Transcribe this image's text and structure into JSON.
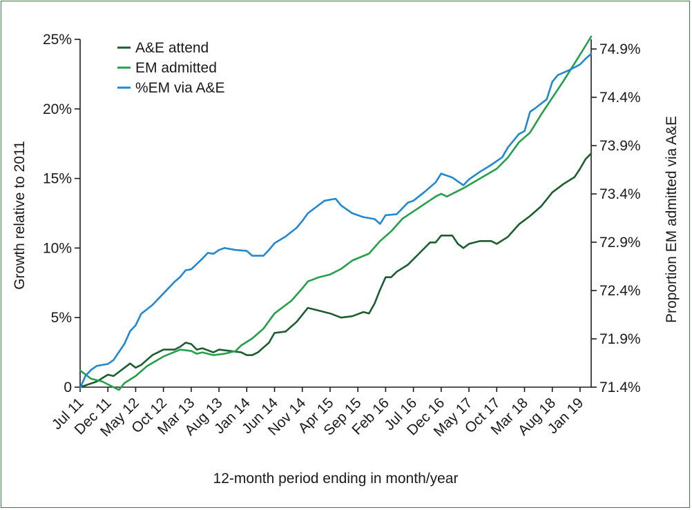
{
  "chart_data": {
    "type": "line",
    "xlabel": "12-month period ending in month/year",
    "ylabel_left": "Growth relative to 2011",
    "ylabel_right": "Proportion EM admitted via A&E",
    "x_ticks": [
      "Jul 11",
      "Dec 11",
      "May 12",
      "Oct 12",
      "Mar 13",
      "Aug 13",
      "Jan 14",
      "Jun 14",
      "Nov 14",
      "Apr 15",
      "Sep 15",
      "Feb 16",
      "Jul 16",
      "Dec 16",
      "May 17",
      "Oct 17",
      "Mar 18",
      "Aug 18",
      "Jan 19"
    ],
    "x_range": [
      "Jul 11",
      "Mar 19"
    ],
    "left_axis": {
      "ticks": [
        "0",
        "5%",
        "10%",
        "15%",
        "20%",
        "25%"
      ],
      "values": [
        0,
        5,
        10,
        15,
        20,
        25
      ],
      "ylim": [
        0,
        25
      ]
    },
    "right_axis": {
      "ticks": [
        "71.4%",
        "71.9%",
        "72.4%",
        "72.9%",
        "73.4%",
        "73.9%",
        "74.4%",
        "74.9%"
      ],
      "values": [
        71.4,
        71.9,
        72.4,
        72.9,
        73.4,
        73.9,
        74.4,
        74.9
      ],
      "ylim": [
        71.4,
        75.0
      ]
    },
    "legend_position": "top-left",
    "series": [
      {
        "name": "A&E attend",
        "axis": "left",
        "color": "#1b5e2e",
        "points": [
          [
            "Jul 11",
            0.0
          ],
          [
            "Oct 11",
            0.4
          ],
          [
            "Dec 11",
            0.9
          ],
          [
            "Jan 12",
            0.8
          ],
          [
            "Mar 12",
            1.4
          ],
          [
            "Apr 12",
            1.7
          ],
          [
            "May 12",
            1.4
          ],
          [
            "Jun 12",
            1.6
          ],
          [
            "Aug 12",
            2.3
          ],
          [
            "Oct 12",
            2.7
          ],
          [
            "Dec 12",
            2.7
          ],
          [
            "Jan 13",
            2.9
          ],
          [
            "Feb 13",
            3.2
          ],
          [
            "Mar 13",
            3.1
          ],
          [
            "Apr 13",
            2.7
          ],
          [
            "May 13",
            2.8
          ],
          [
            "Jul 13",
            2.5
          ],
          [
            "Aug 13",
            2.7
          ],
          [
            "Oct 13",
            2.6
          ],
          [
            "Dec 13",
            2.5
          ],
          [
            "Jan 14",
            2.3
          ],
          [
            "Feb 14",
            2.3
          ],
          [
            "Mar 14",
            2.5
          ],
          [
            "May 14",
            3.2
          ],
          [
            "Jun 14",
            3.9
          ],
          [
            "Aug 14",
            4.0
          ],
          [
            "Oct 14",
            4.7
          ],
          [
            "Dec 14",
            5.7
          ],
          [
            "Feb 15",
            5.5
          ],
          [
            "Apr 15",
            5.3
          ],
          [
            "Jun 15",
            5.0
          ],
          [
            "Aug 15",
            5.1
          ],
          [
            "Oct 15",
            5.4
          ],
          [
            "Nov 15",
            5.3
          ],
          [
            "Dec 15",
            6.0
          ],
          [
            "Jan 16",
            7.0
          ],
          [
            "Feb 16",
            7.9
          ],
          [
            "Mar 16",
            7.9
          ],
          [
            "Apr 16",
            8.3
          ],
          [
            "Jun 16",
            8.8
          ],
          [
            "Aug 16",
            9.6
          ],
          [
            "Oct 16",
            10.4
          ],
          [
            "Nov 16",
            10.4
          ],
          [
            "Dec 16",
            10.9
          ],
          [
            "Feb 17",
            10.9
          ],
          [
            "Mar 17",
            10.3
          ],
          [
            "Apr 17",
            10.0
          ],
          [
            "May 17",
            10.3
          ],
          [
            "Jul 17",
            10.5
          ],
          [
            "Sep 17",
            10.5
          ],
          [
            "Oct 17",
            10.3
          ],
          [
            "Dec 17",
            10.8
          ],
          [
            "Feb 18",
            11.7
          ],
          [
            "Apr 18",
            12.3
          ],
          [
            "Jun 18",
            13.0
          ],
          [
            "Aug 18",
            14.0
          ],
          [
            "Oct 18",
            14.6
          ],
          [
            "Dec 18",
            15.1
          ],
          [
            "Jan 19",
            15.7
          ],
          [
            "Feb 19",
            16.4
          ],
          [
            "Mar 19",
            16.8
          ]
        ]
      },
      {
        "name": "EM admitted",
        "axis": "left",
        "color": "#22a04a",
        "points": [
          [
            "Jul 11",
            1.2
          ],
          [
            "Sep 11",
            0.6
          ],
          [
            "Nov 11",
            0.4
          ],
          [
            "Jan 12",
            0.0
          ],
          [
            "Feb 12",
            -0.2
          ],
          [
            "Mar 12",
            0.3
          ],
          [
            "May 12",
            0.8
          ],
          [
            "Jul 12",
            1.5
          ],
          [
            "Oct 12",
            2.2
          ],
          [
            "Jan 13",
            2.7
          ],
          [
            "Mar 13",
            2.6
          ],
          [
            "Apr 13",
            2.4
          ],
          [
            "May 13",
            2.5
          ],
          [
            "Jul 13",
            2.3
          ],
          [
            "Sep 13",
            2.4
          ],
          [
            "Nov 13",
            2.6
          ],
          [
            "Dec 13",
            3.0
          ],
          [
            "Feb 14",
            3.5
          ],
          [
            "Apr 14",
            4.2
          ],
          [
            "Jun 14",
            5.3
          ],
          [
            "Sep 14",
            6.2
          ],
          [
            "Nov 14",
            7.1
          ],
          [
            "Dec 14",
            7.6
          ],
          [
            "Feb 15",
            7.9
          ],
          [
            "Apr 15",
            8.1
          ],
          [
            "Jun 15",
            8.5
          ],
          [
            "Aug 15",
            9.1
          ],
          [
            "Nov 15",
            9.6
          ],
          [
            "Jan 16",
            10.5
          ],
          [
            "Mar 16",
            11.2
          ],
          [
            "May 16",
            12.1
          ],
          [
            "Aug 16",
            12.9
          ],
          [
            "Nov 16",
            13.7
          ],
          [
            "Dec 16",
            13.9
          ],
          [
            "Jan 17",
            13.7
          ],
          [
            "Apr 17",
            14.3
          ],
          [
            "Oct 17",
            15.7
          ],
          [
            "Dec 17",
            16.5
          ],
          [
            "Feb 18",
            17.6
          ],
          [
            "Apr 18",
            18.3
          ],
          [
            "Jun 18",
            19.6
          ],
          [
            "Aug 18",
            20.8
          ],
          [
            "Oct 18",
            22.0
          ],
          [
            "Jan 19",
            23.9
          ],
          [
            "Mar 19",
            25.2
          ]
        ]
      },
      {
        "name": "%EM via A&E",
        "axis": "right",
        "color": "#1e88d2",
        "points": [
          [
            "Jul 11",
            71.39
          ],
          [
            "Aug 11",
            71.52
          ],
          [
            "Sep 11",
            71.58
          ],
          [
            "Oct 11",
            71.62
          ],
          [
            "Dec 11",
            71.64
          ],
          [
            "Jan 12",
            71.68
          ],
          [
            "Mar 12",
            71.85
          ],
          [
            "Apr 12",
            71.98
          ],
          [
            "May 12",
            72.04
          ],
          [
            "Jun 12",
            72.16
          ],
          [
            "Aug 12",
            72.25
          ],
          [
            "Oct 12",
            72.37
          ],
          [
            "Dec 12",
            72.49
          ],
          [
            "Jan 13",
            72.54
          ],
          [
            "Feb 13",
            72.61
          ],
          [
            "Mar 13",
            72.62
          ],
          [
            "May 13",
            72.73
          ],
          [
            "Jun 13",
            72.79
          ],
          [
            "Jul 13",
            72.78
          ],
          [
            "Aug 13",
            72.82
          ],
          [
            "Sep 13",
            72.84
          ],
          [
            "Oct 13",
            72.83
          ],
          [
            "Nov 13",
            72.82
          ],
          [
            "Jan 14",
            72.81
          ],
          [
            "Feb 14",
            72.76
          ],
          [
            "Apr 14",
            72.76
          ],
          [
            "May 14",
            72.82
          ],
          [
            "Jun 14",
            72.89
          ],
          [
            "Aug 14",
            72.96
          ],
          [
            "Oct 14",
            73.05
          ],
          [
            "Nov 14",
            73.12
          ],
          [
            "Dec 14",
            73.2
          ],
          [
            "Mar 15",
            73.33
          ],
          [
            "May 15",
            73.35
          ],
          [
            "Jun 15",
            73.28
          ],
          [
            "Aug 15",
            73.2
          ],
          [
            "Oct 15",
            73.16
          ],
          [
            "Dec 15",
            73.14
          ],
          [
            "Jan 16",
            73.09
          ],
          [
            "Feb 16",
            73.18
          ],
          [
            "Apr 16",
            73.19
          ],
          [
            "May 16",
            73.25
          ],
          [
            "Jun 16",
            73.31
          ],
          [
            "Jul 16",
            73.33
          ],
          [
            "Sep 16",
            73.42
          ],
          [
            "Nov 16",
            73.52
          ],
          [
            "Dec 16",
            73.61
          ],
          [
            "Feb 17",
            73.57
          ],
          [
            "Apr 17",
            73.49
          ],
          [
            "May 17",
            73.55
          ],
          [
            "Jul 17",
            73.63
          ],
          [
            "Sep 17",
            73.7
          ],
          [
            "Nov 17",
            73.78
          ],
          [
            "Dec 17",
            73.88
          ],
          [
            "Feb 18",
            74.02
          ],
          [
            "Mar 18",
            74.05
          ],
          [
            "Apr 18",
            74.25
          ],
          [
            "May 18",
            74.29
          ],
          [
            "Jul 18",
            74.38
          ],
          [
            "Aug 18",
            74.56
          ],
          [
            "Sep 18",
            74.63
          ],
          [
            "Nov 18",
            74.68
          ],
          [
            "Jan 19",
            74.74
          ],
          [
            "Feb 19",
            74.8
          ],
          [
            "Mar 19",
            74.85
          ]
        ]
      }
    ]
  }
}
